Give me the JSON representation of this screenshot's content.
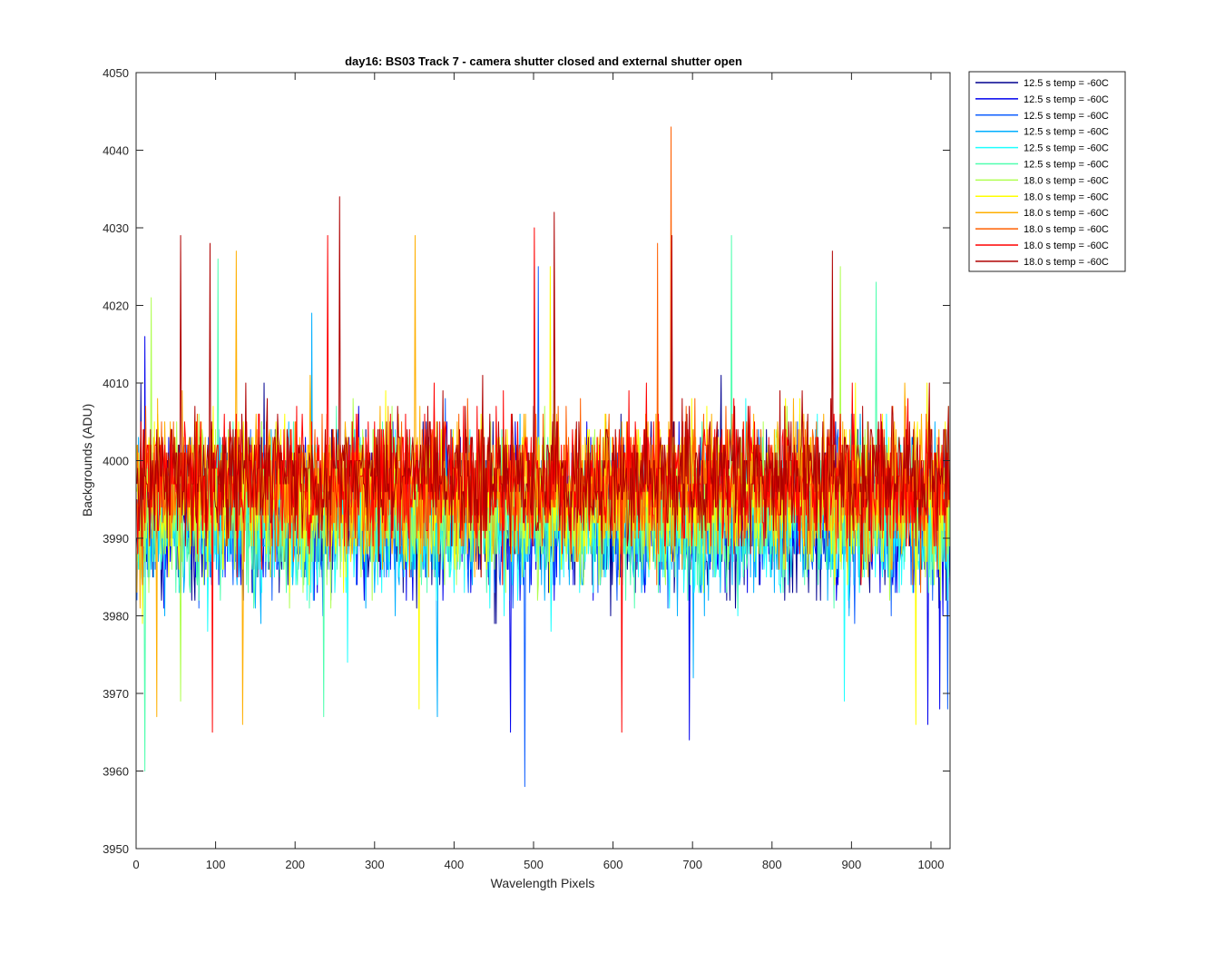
{
  "chart_data": {
    "type": "line",
    "title": "day16: BS03  Track 7 - camera shutter closed and external shutter open",
    "xlabel": "Wavelength Pixels",
    "ylabel": "Backgrounds (ADU)",
    "xlim": [
      0,
      1024
    ],
    "ylim": [
      3950,
      4050
    ],
    "xticks": [
      0,
      100,
      200,
      300,
      400,
      500,
      600,
      700,
      800,
      900,
      1000
    ],
    "yticks": [
      3950,
      3960,
      3970,
      3980,
      3990,
      4000,
      4010,
      4020,
      4030,
      4040,
      4050
    ],
    "grid": false,
    "legend_position": "outside-top-right",
    "series": [
      {
        "name": "12.5 s temp = -60C",
        "color": "#00008F",
        "mean": 3993.0,
        "noise": 6.5,
        "seed": 11,
        "spikes": [
          [
            5,
            4010
          ],
          [
            160,
            4010
          ],
          [
            735,
            4011
          ]
        ]
      },
      {
        "name": "12.5 s temp = -60C",
        "color": "#0000EE",
        "mean": 3993.0,
        "noise": 6.5,
        "seed": 23,
        "spikes": [
          [
            10,
            4016
          ],
          [
            470,
            3965
          ],
          [
            695,
            3964
          ],
          [
            995,
            3966
          ],
          [
            1010,
            3968
          ]
        ]
      },
      {
        "name": "12.5 s temp = -60C",
        "color": "#0F5FFF",
        "mean": 3993.0,
        "noise": 6.5,
        "seed": 37,
        "spikes": [
          [
            488,
            3958
          ],
          [
            505,
            4025
          ],
          [
            1020,
            3968
          ]
        ]
      },
      {
        "name": "12.5 s temp = -60C",
        "color": "#00AFFF",
        "mean": 3993.0,
        "noise": 6.5,
        "seed": 41,
        "spikes": [
          [
            220,
            4019
          ],
          [
            378,
            3967
          ],
          [
            700,
            3972
          ]
        ]
      },
      {
        "name": "12.5 s temp = -60C",
        "color": "#1FFFFF",
        "mean": 3993.0,
        "noise": 6.5,
        "seed": 53,
        "spikes": [
          [
            265,
            3974
          ],
          [
            500,
            4025
          ],
          [
            890,
            3969
          ]
        ]
      },
      {
        "name": "12.5 s temp = -60C",
        "color": "#50FFAF",
        "mean": 3993.0,
        "noise": 6.5,
        "seed": 67,
        "spikes": [
          [
            10,
            3960
          ],
          [
            102,
            4026
          ],
          [
            235,
            3967
          ],
          [
            748,
            4029
          ],
          [
            930,
            4023
          ]
        ]
      },
      {
        "name": "18.0 s temp = -60C",
        "color": "#AFFF50",
        "mean": 3995.0,
        "noise": 6.5,
        "seed": 71,
        "spikes": [
          [
            18,
            4021
          ],
          [
            55,
            3969
          ],
          [
            885,
            4025
          ]
        ]
      },
      {
        "name": "18.0 s temp = -60C",
        "color": "#FFFF00",
        "mean": 3996.0,
        "noise": 6.5,
        "seed": 83,
        "spikes": [
          [
            355,
            3968
          ],
          [
            520,
            4025
          ],
          [
            980,
            3966
          ]
        ]
      },
      {
        "name": "18.0 s temp = -60C",
        "color": "#FFAF00",
        "mean": 3996.5,
        "noise": 6.5,
        "seed": 97,
        "spikes": [
          [
            25,
            3967
          ],
          [
            125,
            4027
          ],
          [
            133,
            3966
          ],
          [
            350,
            4029
          ]
        ]
      },
      {
        "name": "18.0 s temp = -60C",
        "color": "#FF5F00",
        "mean": 3997.0,
        "noise": 6.0,
        "seed": 101,
        "spikes": [
          [
            672,
            4043
          ],
          [
            655,
            4028
          ]
        ]
      },
      {
        "name": "18.0 s temp = -60C",
        "color": "#FF0000",
        "mean": 3997.5,
        "noise": 6.0,
        "seed": 113,
        "spikes": [
          [
            95,
            3965
          ],
          [
            240,
            4029
          ],
          [
            500,
            4030
          ],
          [
            610,
            3965
          ]
        ]
      },
      {
        "name": "18.0 s temp = -60C",
        "color": "#AF0000",
        "mean": 3998.0,
        "noise": 5.8,
        "seed": 127,
        "spikes": [
          [
            55,
            4029
          ],
          [
            92,
            4028
          ],
          [
            255,
            4034
          ],
          [
            525,
            4032
          ],
          [
            673,
            4029
          ],
          [
            875,
            4027
          ]
        ]
      }
    ]
  }
}
